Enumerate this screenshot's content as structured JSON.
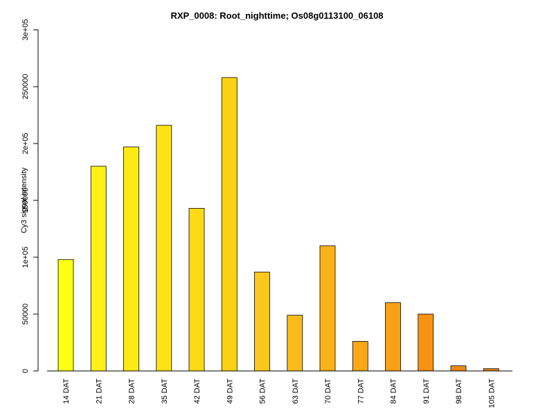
{
  "chart_data": {
    "type": "bar",
    "title": "RXP_0008: Root_nighttime; Os08g0113100_06108",
    "xlabel": "",
    "ylabel": "Cy3 signal intensity",
    "ylim": [
      0,
      300000
    ],
    "y_ticks": [
      {
        "value": 0,
        "label": "0"
      },
      {
        "value": 50000,
        "label": "50000"
      },
      {
        "value": 100000,
        "label": "1e+05"
      },
      {
        "value": 150000,
        "label": "150000"
      },
      {
        "value": 200000,
        "label": "2e+05"
      },
      {
        "value": 250000,
        "label": "250000"
      },
      {
        "value": 300000,
        "label": "3e+05"
      }
    ],
    "categories": [
      "14 DAT",
      "21 DAT",
      "28 DAT",
      "35 DAT",
      "42 DAT",
      "49 DAT",
      "56 DAT",
      "63 DAT",
      "70 DAT",
      "77 DAT",
      "84 DAT",
      "91 DAT",
      "98 DAT",
      "105 DAT"
    ],
    "values": [
      98000,
      180000,
      197000,
      216000,
      143000,
      258000,
      87000,
      49000,
      110000,
      26000,
      60000,
      50000,
      4500,
      2000
    ],
    "colors": [
      "#FFFF14",
      "#FFF114",
      "#FEEB14",
      "#FEE214",
      "#FDDA14",
      "#FDD114",
      "#FDC81B",
      "#FCBB1A",
      "#FBB118",
      "#FAA816",
      "#F9A014",
      "#F89214",
      "#E98A14",
      "#E58314"
    ],
    "grid": false,
    "legend": "none"
  }
}
